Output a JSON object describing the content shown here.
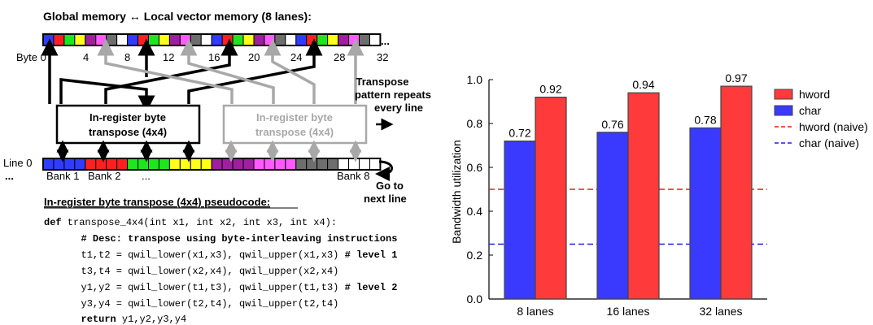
{
  "diagram": {
    "title": "Global memory ↔ Local vector memory (8 lanes):",
    "byte_labels": [
      "Byte 0",
      "4",
      "8",
      "12",
      "16",
      "20",
      "24",
      "28",
      "32"
    ],
    "top_ellipsis": "...",
    "transpose_box_left": {
      "line1": "In-register byte",
      "line2": "transpose (4x4)"
    },
    "transpose_box_right": {
      "line1": "In-register byte",
      "line2": "transpose (4x4)"
    },
    "repeat_note": [
      "Transpose",
      "pattern repeats",
      "every line"
    ],
    "line_label": "Line 0",
    "bank_row": {
      "ellipsis_left": "...",
      "bank1": "Bank 1",
      "bank2": "Bank 2",
      "ellipsis_mid": "...",
      "bank8": "Bank 8"
    },
    "next_line_note": [
      "Go to",
      "next line"
    ],
    "colors": {
      "blue": "#2f3bff",
      "red": "#ff1f1f",
      "green": "#1ee61e",
      "yellow": "#ffff1a",
      "purple": "#a01ea0",
      "pink": "#ff5aff",
      "grey": "#6e6e6e",
      "white": "#ffffff",
      "arrow_black": "#000000",
      "arrow_grey": "#a8a8a8"
    }
  },
  "pseudocode": {
    "heading": "In-register byte transpose (4x4) pseudocode:",
    "lines": [
      {
        "kw": "def",
        "text": " transpose_4x4(int x1, int x2, int x3, int x4):",
        "bold_tail": ""
      },
      {
        "kw": "",
        "text": "",
        "bold_tail": "  # Desc: transpose using byte-interleaving instructions"
      },
      {
        "kw": "",
        "text": "  t1,t2 = qwil_lower(x1,x3), qwil_upper(x1,x3)",
        "bold_tail": " # level 1"
      },
      {
        "kw": "",
        "text": "  t3,t4 = qwil_lower(x2,x4), qwil_upper(x2,x4)",
        "bold_tail": ""
      },
      {
        "kw": "",
        "text": "  y1,y2 = qwil_lower(t1,t3), qwil_upper(t1,t3)",
        "bold_tail": " # level 2"
      },
      {
        "kw": "",
        "text": "  y3,y4 = qwil_lower(t2,t4), qwil_upper(t2,t4)",
        "bold_tail": ""
      },
      {
        "kw": "  return",
        "text": " y1,y2,y3,y4",
        "bold_tail": ""
      }
    ]
  },
  "chart_data": {
    "type": "bar",
    "categories": [
      "8 lanes",
      "16 lanes",
      "32 lanes"
    ],
    "series": [
      {
        "name": "char",
        "values": [
          0.72,
          0.76,
          0.78
        ],
        "color": "#3a3aff"
      },
      {
        "name": "hword",
        "values": [
          0.92,
          0.94,
          0.97
        ],
        "color": "#ff3a3a"
      }
    ],
    "data_labels": [
      [
        "0.72",
        "0.76",
        "0.78"
      ],
      [
        "0.92",
        "0.94",
        "0.97"
      ]
    ],
    "reference_lines": [
      {
        "name": "hword (naive)",
        "value": 0.5,
        "color": "#e61e1e",
        "style": "dashed"
      },
      {
        "name": "char (naive)",
        "value": 0.25,
        "color": "#1e1ee6",
        "style": "dashed"
      }
    ],
    "legend": [
      "hword",
      "char",
      "hword (naive)",
      "char (naive)"
    ],
    "ylabel": "Bandwidth utilization",
    "xlabel": "",
    "ylim": [
      0,
      1.0
    ],
    "yticks": [
      "0.0",
      "0.2",
      "0.4",
      "0.6",
      "0.8",
      "1.0"
    ],
    "legend_position": "right",
    "grid": false
  }
}
